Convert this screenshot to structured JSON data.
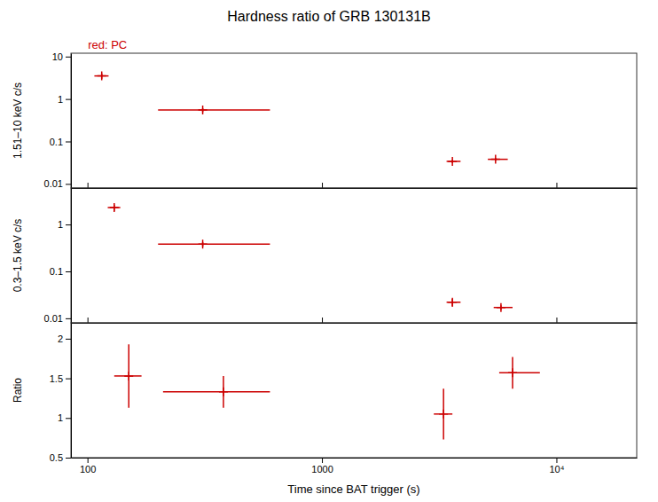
{
  "chart_data": [
    {
      "type": "scatter",
      "title": "Hardness ratio of GRB 130131B",
      "annotations": [
        "red: PC"
      ],
      "ylabel": "1.51–10 keV c/s",
      "x": [
        115,
        310,
        3600,
        5500
      ],
      "values": [
        3.5,
        0.55,
        0.034,
        0.038
      ],
      "xerr_lo": [
        8,
        110,
        200,
        400
      ],
      "xerr_hi": [
        8,
        290,
        300,
        700
      ],
      "yerr_lo": [
        0.5,
        0.06,
        0.003,
        0.003
      ],
      "yerr_hi": [
        0.5,
        0.06,
        0.003,
        0.003
      ],
      "xlim": [
        85,
        22000
      ],
      "xticks": [
        100,
        1000,
        {
          "value": 10000,
          "label": "10⁴"
        }
      ],
      "ylim": [
        0.008,
        12
      ],
      "yticks": [
        0.01,
        0.1,
        1,
        10
      ],
      "log": true,
      "color": "#cc0000",
      "marker": "plus",
      "tick_labels": "y"
    },
    {
      "type": "scatter",
      "ylabel": "0.3–1.5 keV c/s",
      "x": [
        130,
        310,
        3600,
        5800
      ],
      "values": [
        2.3,
        0.38,
        0.022,
        0.017
      ],
      "xerr_lo": [
        8,
        110,
        200,
        400
      ],
      "xerr_hi": [
        8,
        290,
        300,
        700
      ],
      "yerr_lo": [
        0.35,
        0.04,
        0.004,
        0.002
      ],
      "yerr_hi": [
        0.35,
        0.04,
        0.004,
        0.002
      ],
      "xlim": [
        85,
        22000
      ],
      "xticks": [
        100,
        1000,
        {
          "value": 10000,
          "label": "10⁴"
        }
      ],
      "ylim": [
        0.008,
        6
      ],
      "yticks": [
        0.01,
        0.1,
        1
      ],
      "log": true,
      "color": "#cc0000",
      "marker": "plus",
      "tick_labels": "y"
    },
    {
      "type": "scatter",
      "xlabel": "Time since BAT trigger (s)",
      "ylabel": "Ratio",
      "x": [
        150,
        380,
        3300,
        6500
      ],
      "values": [
        1.53,
        1.33,
        1.05,
        1.57
      ],
      "xerr_lo": [
        20,
        170,
        300,
        800
      ],
      "xerr_hi": [
        20,
        220,
        300,
        2000
      ],
      "yerr_lo": [
        0.4,
        0.2,
        0.32,
        0.2
      ],
      "yerr_hi": [
        0.4,
        0.2,
        0.32,
        0.2
      ],
      "xlim": [
        85,
        22000
      ],
      "xticks": [
        100,
        1000,
        {
          "value": 10000,
          "label": "10⁴"
        }
      ],
      "ylim": [
        0.5,
        2.2
      ],
      "yticks": [
        0.5,
        1,
        1.5,
        2
      ],
      "log": "x",
      "color": "#cc0000",
      "marker": "plus"
    }
  ]
}
